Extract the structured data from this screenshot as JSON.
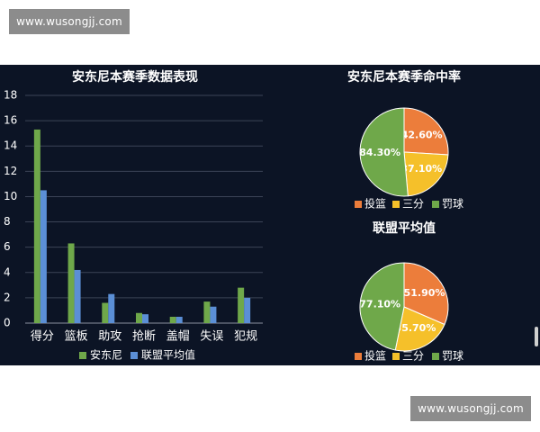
{
  "watermark": {
    "text": "www.wusongjj.com"
  },
  "colors": {
    "background": "#0c1425",
    "text": "#ffffff",
    "grid": "#3b4356",
    "anthony": "#6fa84a",
    "league": "#5b8fd6",
    "shot": "#ec7d3b",
    "three": "#f5c02a",
    "free_throw": "#6fa84a"
  },
  "chart_data": [
    {
      "type": "bar",
      "title": "安东尼本赛季数据表现",
      "categories": [
        "得分",
        "篮板",
        "助攻",
        "抢断",
        "盖帽",
        "失误",
        "犯规"
      ],
      "series": [
        {
          "name": "安东尼",
          "values": [
            15.3,
            6.3,
            1.6,
            0.8,
            0.5,
            1.7,
            2.8
          ]
        },
        {
          "name": "联盟平均值",
          "values": [
            10.5,
            4.2,
            2.3,
            0.7,
            0.5,
            1.3,
            2.0
          ]
        }
      ],
      "ylim": [
        0,
        18
      ],
      "yticks": [
        0,
        2,
        4,
        6,
        8,
        10,
        12,
        14,
        16,
        18
      ],
      "grid": true,
      "legend": "bottom"
    },
    {
      "type": "pie",
      "title": "安东尼本赛季命中率",
      "labels": [
        "投篮",
        "三分",
        "罚球"
      ],
      "values": [
        42.6,
        37.1,
        84.3
      ],
      "value_labels": [
        "42.60%",
        "37.10%",
        "84.30%"
      ],
      "legend": "bottom"
    },
    {
      "type": "pie",
      "title": "联盟平均值",
      "labels": [
        "投篮",
        "三分",
        "罚球"
      ],
      "values": [
        51.9,
        35.7,
        77.1
      ],
      "value_labels": [
        "51.90%",
        "35.70%",
        "77.10%"
      ],
      "legend": "bottom"
    }
  ]
}
